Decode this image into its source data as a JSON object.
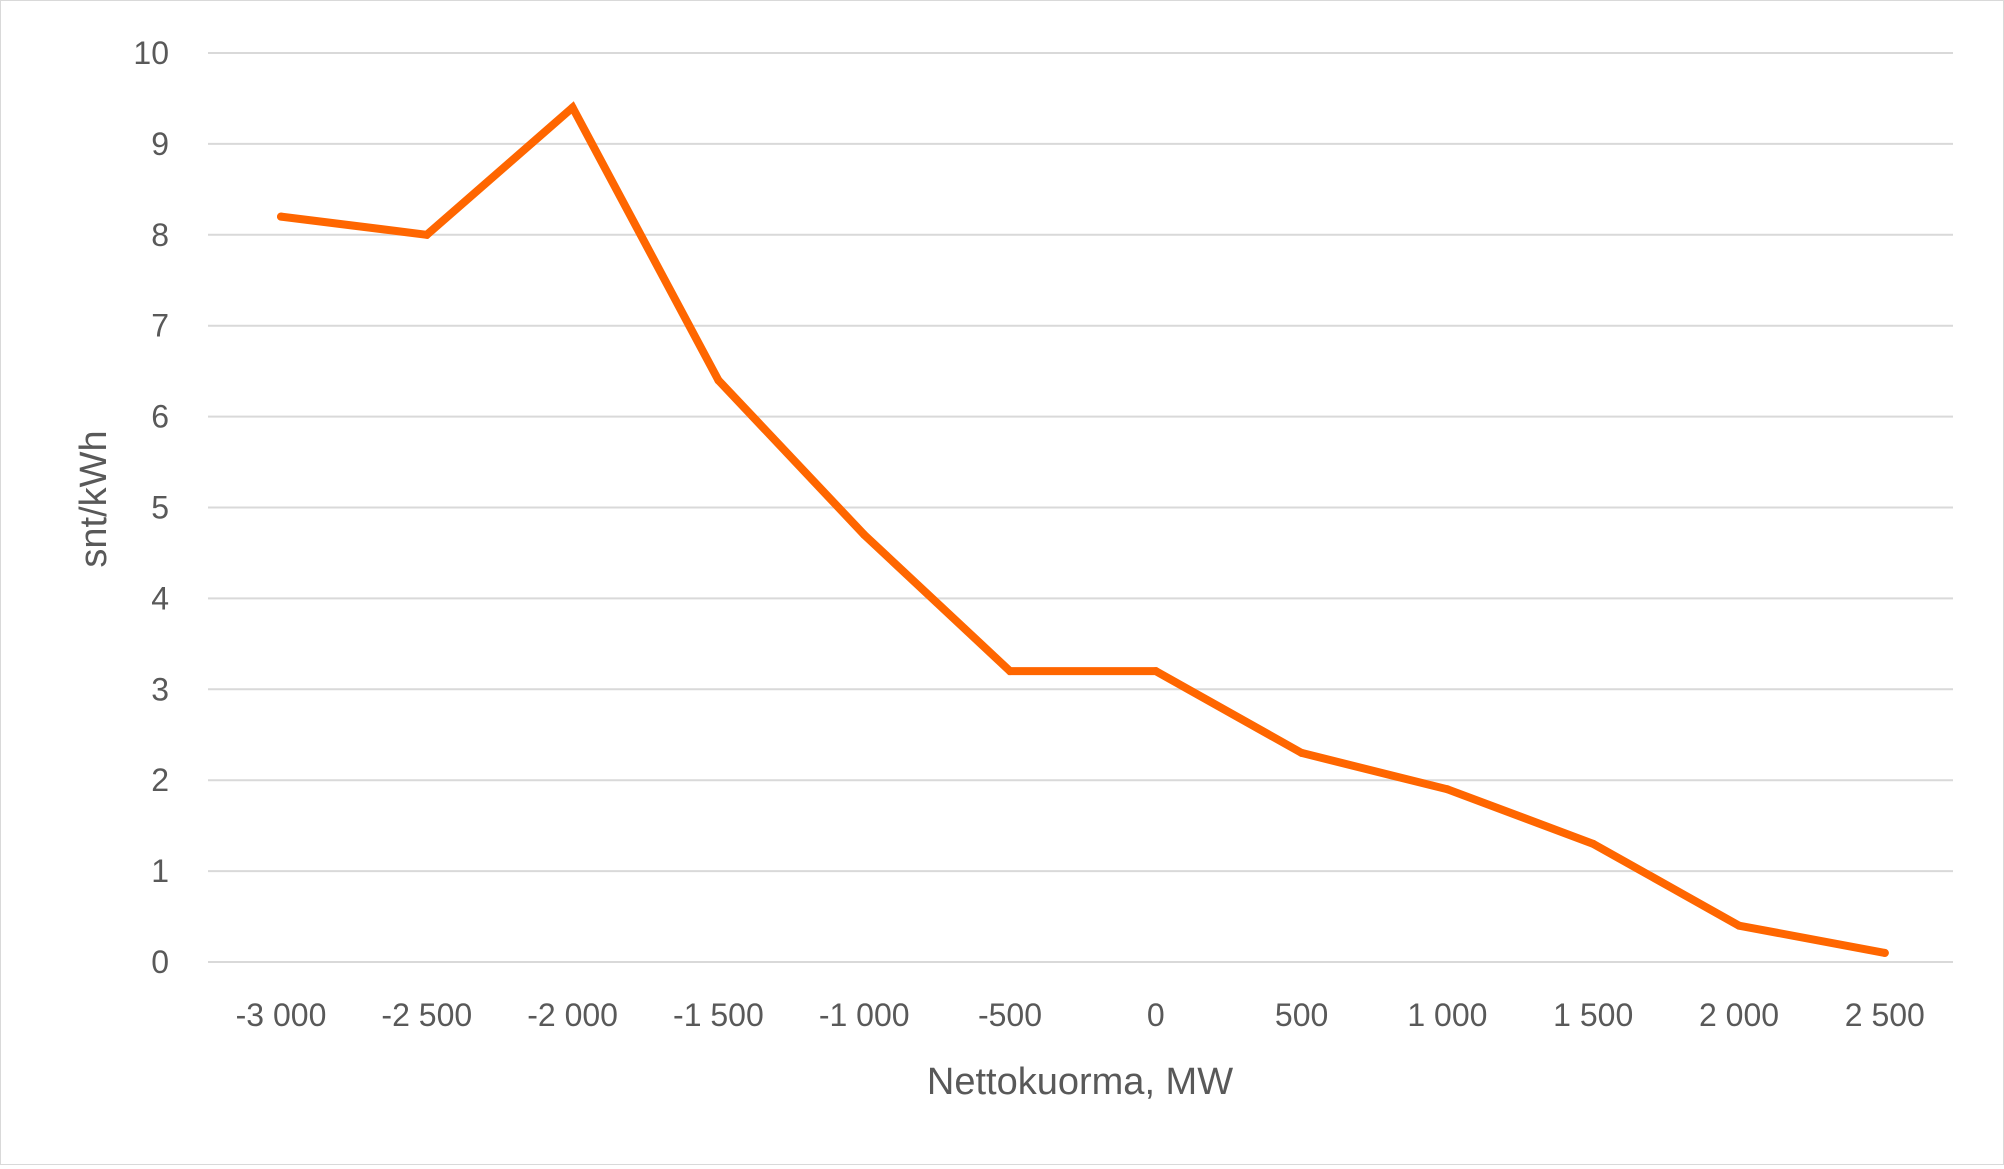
{
  "chart_data": {
    "type": "line",
    "title": "",
    "xlabel": "Nettokuorma, MW",
    "ylabel": "snt/kWh",
    "categories": [
      "-3 000",
      "-2 500",
      "-2 000",
      "-1 500",
      "-1 000",
      "-500",
      "0",
      "500",
      "1 000",
      "1 500",
      "2 000",
      "2 500"
    ],
    "x": [
      -3000,
      -2500,
      -2000,
      -1500,
      -1000,
      -500,
      0,
      500,
      1000,
      1500,
      2000,
      2500
    ],
    "series": [
      {
        "color": "#ff6600",
        "values": [
          8.2,
          8.0,
          9.4,
          6.4,
          4.7,
          3.2,
          3.2,
          2.3,
          1.9,
          1.3,
          0.4,
          0.1
        ]
      }
    ],
    "ylim": [
      0,
      10
    ],
    "yticks": [
      "0",
      "1",
      "2",
      "3",
      "4",
      "5",
      "6",
      "7",
      "8",
      "9",
      "10"
    ],
    "grid": true,
    "gridColor": "#d9d9d9",
    "legend": "none"
  }
}
